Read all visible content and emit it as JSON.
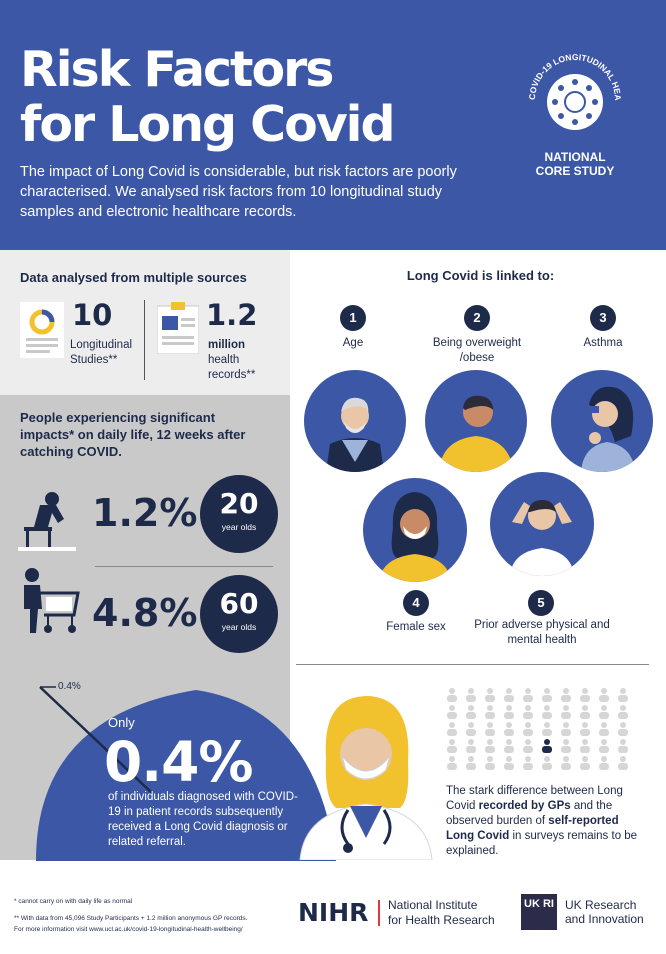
{
  "header": {
    "title_line1": "Risk Factors",
    "title_line2": "for Long Covid",
    "intro": "The impact of Long Covid is considerable, but risk factors are poorly characterised. We analysed risk factors from 10 longitudinal study samples and electronic healthcare records.",
    "badge_ring_text": "COVID-19 LONGITUDINAL HEALTH & WELLBEING",
    "badge_line1": "NATIONAL",
    "badge_line2": "CORE STUDY"
  },
  "sources": {
    "heading": "Data analysed from multiple sources",
    "studies_num": "10",
    "studies_label1": "Longitudinal",
    "studies_label2": "Studies**",
    "records_num": "1.2",
    "records_label1": "million",
    "records_label2": "health",
    "records_label3": "records**"
  },
  "impacts": {
    "heading": "People experiencing significant impacts* on daily life, 12 weeks after catching COVID.",
    "row1_pct": "1.2%",
    "row1_age": "20",
    "row1_unit": "year olds",
    "row2_pct": "4.8%",
    "row2_age": "60",
    "row2_unit": "year olds"
  },
  "linked": {
    "heading": "Long Covid is linked to:",
    "factors": [
      {
        "num": "1",
        "label": "Age"
      },
      {
        "num": "2",
        "label1": "Being overweight",
        "label2": "/obese"
      },
      {
        "num": "3",
        "label": "Asthma"
      },
      {
        "num": "4",
        "label": "Female sex"
      },
      {
        "num": "5",
        "label1": "Prior adverse physical and",
        "label2": "mental health"
      }
    ]
  },
  "diagnosis": {
    "pin_label": "0.4%",
    "only": "Only",
    "pct": "0.4%",
    "desc": "of individuals diagnosed with COVID-19 in patient records subsequently received a Long Covid diagnosis or related referral.",
    "stark_1": "The stark difference between Long Covid ",
    "stark_bold1": "recorded by GPs",
    "stark_2": " and the observed burden of ",
    "stark_bold2": "self-reported Long Covid",
    "stark_3": " in surveys remains to be explained."
  },
  "footer": {
    "note1": "* cannot carry on with daily life as normal",
    "note2": "** With data from 45,096 Study Participants + 1.2 million anonymous GP records.",
    "note3": "For more information visit www.ucl.ac.uk/covid-19-longitudinal-health-wellbeing/",
    "nihr_mark": "NIHR",
    "nihr_line1": "National Institute",
    "nihr_line2": "for Health Research",
    "ukri_mark": "UK RI",
    "ukri_line1": "UK Research",
    "ukri_line2": "and Innovation"
  },
  "colors": {
    "brand_blue": "#3b57a6",
    "navy": "#1e2a4a",
    "yellow": "#f2c12e",
    "grey_light": "#ededed",
    "grey_mid": "#c9c9c9"
  },
  "icons": [
    "badge-ring-icon",
    "pie-document-icon",
    "clipboard-icon",
    "sad-person-chair-icon",
    "person-walker-icon",
    "person-grid-icon"
  ]
}
